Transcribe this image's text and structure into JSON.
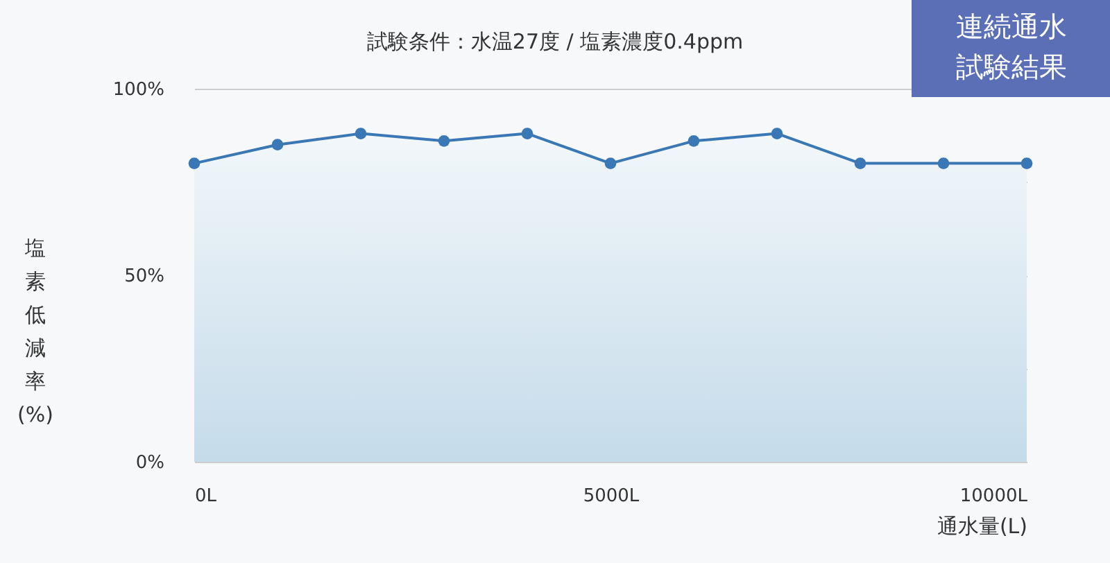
{
  "chart_data": {
    "type": "area",
    "title": "試験条件：水温27度 / 塩素濃度0.4ppm",
    "xlabel": "通水量(L)",
    "ylabel": "塩素低減率(%)",
    "annotations": [
      "連続通水",
      "試験結果"
    ],
    "x": [
      0,
      1000,
      2000,
      3000,
      4000,
      5000,
      6000,
      7000,
      8000,
      9000,
      10000
    ],
    "series": [
      {
        "color": "#3a78b5",
        "values": [
          80,
          85,
          88,
          86,
          88,
          80,
          86,
          88,
          80,
          80,
          80
        ]
      }
    ],
    "xlim": [
      0,
      10000
    ],
    "xticks": [
      {
        "value": 0,
        "label": "0L"
      },
      {
        "value": 5000,
        "label": "5000L"
      },
      {
        "value": 10000,
        "label": "10000L"
      }
    ],
    "ylim": [
      0,
      100
    ],
    "yticks": [
      {
        "value": 0,
        "label": "0%"
      },
      {
        "value": 25,
        "label": null
      },
      {
        "value": 50,
        "label": "50%"
      },
      {
        "value": 75,
        "label": null
      },
      {
        "value": 100,
        "label": "100%"
      }
    ],
    "grid": "y",
    "marker": "circle"
  }
}
